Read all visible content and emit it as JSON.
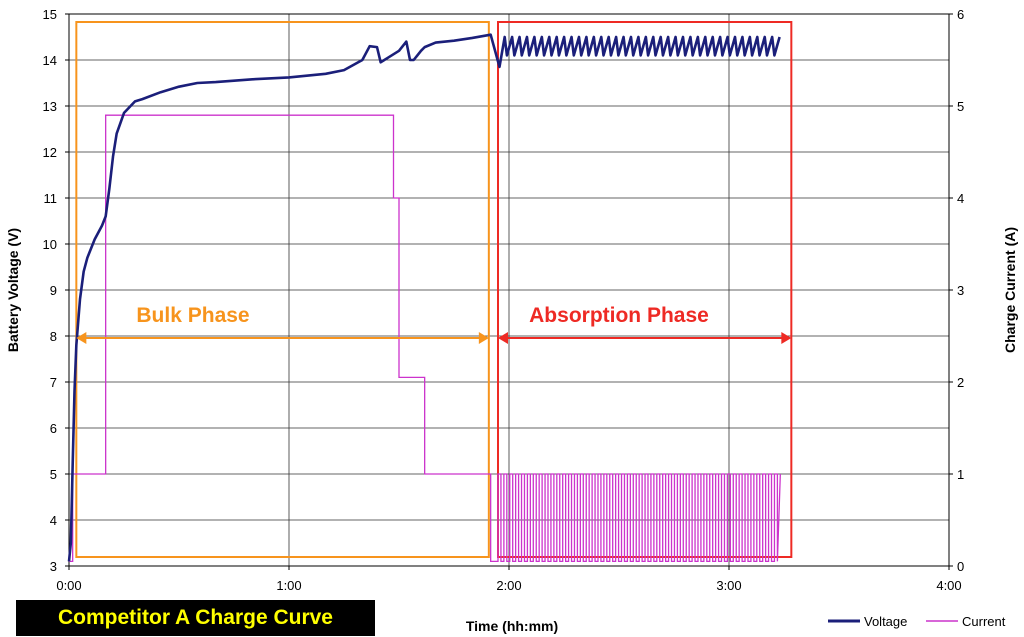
{
  "chart_data": {
    "type": "line",
    "title": "Competitor A Charge Curve",
    "xlabel": "Time (hh:mm)",
    "ylabel_left": "Battery Voltage (V)",
    "ylabel_right": "Charge Current (A)",
    "x_unit": "minutes",
    "xlim": [
      0,
      240
    ],
    "ylim_left": [
      3,
      15
    ],
    "ylim_right": [
      0,
      6
    ],
    "x_tick_labels": [
      "0:00",
      "1:00",
      "2:00",
      "3:00",
      "4:00"
    ],
    "y_left_tick_labels": [
      "3",
      "4",
      "5",
      "6",
      "7",
      "8",
      "9",
      "10",
      "11",
      "12",
      "13",
      "14",
      "15"
    ],
    "y_right_tick_labels": [
      "0",
      "1",
      "2",
      "3",
      "4",
      "5",
      "6"
    ],
    "grid": true,
    "legend_position": "bottom-right",
    "colors": {
      "voltage": "#1b1f7a",
      "current": "#cc33cc",
      "bulk": "#f7941d",
      "absorption": "#ee2a24",
      "badge_bg": "#000000",
      "badge_text": "#ffff00"
    },
    "series": [
      {
        "name": "Voltage",
        "axis": "left",
        "x": [
          0,
          0.5,
          1,
          1.5,
          2,
          3,
          4,
          5,
          7,
          9,
          10,
          11,
          12,
          13,
          15,
          18,
          20,
          25,
          30,
          35,
          40,
          50,
          60,
          70,
          75,
          80,
          82,
          84,
          85,
          86,
          87,
          90,
          92,
          93,
          94,
          95,
          96,
          97,
          100,
          105,
          110,
          115
        ],
        "values": [
          3.1,
          3.5,
          5.2,
          6.8,
          7.8,
          8.8,
          9.4,
          9.7,
          10.1,
          10.4,
          10.6,
          11.2,
          11.9,
          12.4,
          12.85,
          13.1,
          13.15,
          13.3,
          13.42,
          13.5,
          13.52,
          13.58,
          13.62,
          13.7,
          13.78,
          14.0,
          14.3,
          14.28,
          13.95,
          14.0,
          14.05,
          14.2,
          14.4,
          14.0,
          14.0,
          14.1,
          14.2,
          14.28,
          14.38,
          14.42,
          14.48,
          14.55
        ]
      },
      {
        "name": "Current",
        "axis": "right",
        "x": [
          0,
          1,
          1,
          10,
          10,
          88.5,
          88.5,
          90,
          90,
          97,
          97,
          115,
          115
        ],
        "values": [
          0.05,
          0.05,
          1.0,
          1.0,
          4.9,
          4.9,
          4.0,
          4.0,
          2.05,
          2.05,
          1.0,
          1.0,
          0.05
        ]
      }
    ],
    "absorption_oscillation": {
      "x_start": 117,
      "x_end": 194,
      "voltage_high": 14.5,
      "voltage_low": 14.1,
      "current_high": 1.0,
      "current_low": 0.05,
      "cycles": 48
    },
    "annotations": [
      {
        "text": "Bulk Phase",
        "x_start": 2,
        "x_end": 114.5
      },
      {
        "text": "Absorption Phase",
        "x_start": 117,
        "x_end": 197
      }
    ]
  },
  "legend": {
    "voltage": "Voltage",
    "current": "Current"
  }
}
